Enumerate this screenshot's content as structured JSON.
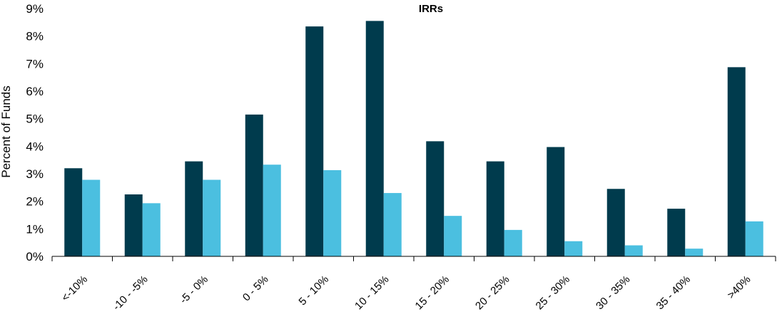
{
  "chart_data": {
    "type": "bar",
    "title": "IRRs",
    "xlabel": "",
    "ylabel": "Percent of Funds",
    "ylim": [
      0,
      9
    ],
    "yticks": [
      "0%",
      "1%",
      "2%",
      "3%",
      "4%",
      "5%",
      "6%",
      "7%",
      "8%",
      "9%"
    ],
    "grid": false,
    "categories": [
      "<-10%",
      "-10 - -5%",
      "-5 - 0%",
      "0 - 5%",
      "5 - 10%",
      "10 - 15%",
      "15 - 20%",
      "20 - 25%",
      "25 - 30%",
      "30 - 35%",
      "35 - 40%",
      ">40%"
    ],
    "series": [
      {
        "color": "#003b4d",
        "values": [
          3.2,
          2.25,
          3.45,
          5.15,
          8.35,
          8.55,
          4.18,
          3.45,
          3.97,
          2.45,
          1.73,
          6.87
        ]
      },
      {
        "color": "#4bbfe0",
        "values": [
          2.78,
          1.93,
          2.78,
          3.33,
          3.13,
          2.3,
          1.47,
          0.96,
          0.55,
          0.4,
          0.28,
          1.27
        ]
      }
    ]
  }
}
